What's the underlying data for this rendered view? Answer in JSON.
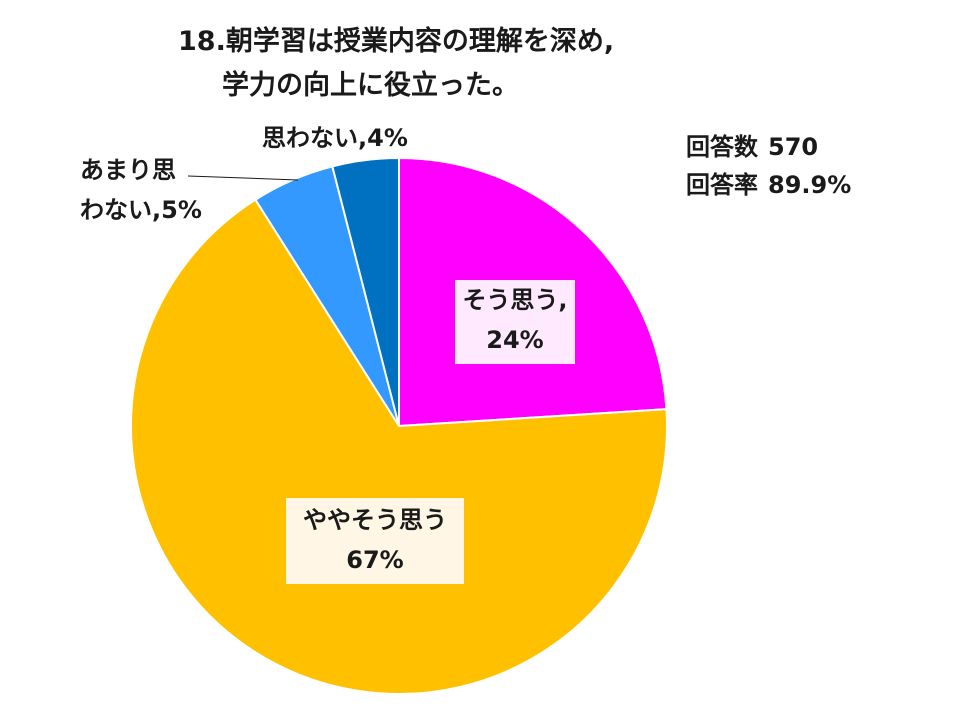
{
  "title": {
    "line1": "18.朝学習は授業内容の理解を深め,",
    "line2": "学力の向上に役立った。"
  },
  "stats": [
    {
      "label": "回答数",
      "value": "570"
    },
    {
      "label": "回答率",
      "value": "89.9%"
    }
  ],
  "chart_data": {
    "type": "pie",
    "start_angle_deg": 0,
    "direction": "clockwise",
    "slices": [
      {
        "label_lines": [
          "そう思う,",
          "24%"
        ],
        "value": 24,
        "color": "#ff00ff"
      },
      {
        "label_lines": [
          "ややそう思う",
          "67%"
        ],
        "value": 67,
        "color": "#ffc000"
      },
      {
        "label_lines": [
          "あまり思",
          "わない,5%"
        ],
        "value": 5,
        "color": "#3399ff"
      },
      {
        "label_lines": [
          "思わない,4%"
        ],
        "value": 4,
        "color": "#0070c0"
      }
    ],
    "legend": "none"
  }
}
